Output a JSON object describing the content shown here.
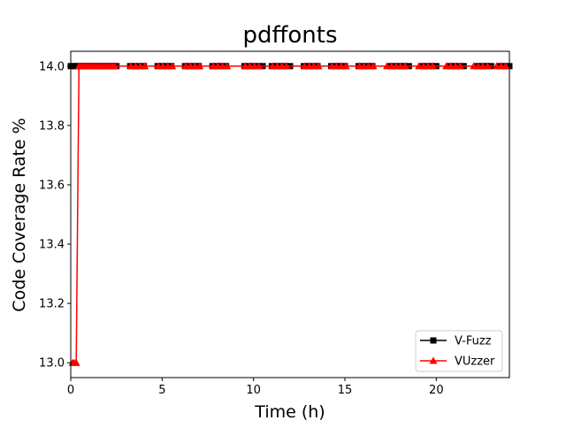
{
  "chart_data": {
    "type": "line",
    "title": "pdffonts",
    "xlabel": "Time (h)",
    "ylabel": "Code Coverage Rate %",
    "xlim": [
      0,
      24
    ],
    "ylim": [
      12.95,
      14.05
    ],
    "xticks": [
      0,
      5,
      10,
      15,
      20
    ],
    "yticks": [
      13.0,
      13.2,
      13.4,
      13.6,
      13.8,
      14.0
    ],
    "ytick_labels": [
      "13.0",
      "13.2",
      "13.4",
      "13.6",
      "13.8",
      "14.0"
    ],
    "grid": false,
    "legend_position": "lower-right",
    "series": [
      {
        "name": "V-Fuzz",
        "color": "#000000",
        "marker": "square",
        "x": [
          0.0,
          0.17,
          0.33,
          0.5,
          0.67,
          0.83,
          1.0,
          1.17,
          1.33,
          1.5,
          1.67,
          1.83,
          2.0,
          2.17,
          2.33,
          2.5,
          3.25,
          3.5,
          3.75,
          4.0,
          4.75,
          5.0,
          5.25,
          5.5,
          6.25,
          6.5,
          6.75,
          7.0,
          7.75,
          8.0,
          8.25,
          8.5,
          9.5,
          9.75,
          10.0,
          10.25,
          10.5,
          11.0,
          11.25,
          11.5,
          11.75,
          12.0,
          12.75,
          13.0,
          13.25,
          13.5,
          14.25,
          14.5,
          14.75,
          15.0,
          15.75,
          16.0,
          16.25,
          16.5,
          17.5,
          17.75,
          18.0,
          18.25,
          18.5,
          19.25,
          19.5,
          19.75,
          20.0,
          20.75,
          21.0,
          21.25,
          21.5,
          22.25,
          22.5,
          22.75,
          23.0,
          23.5,
          23.75,
          24.0
        ],
        "y": [
          14.0,
          14.0,
          14.0,
          14.0,
          14.0,
          14.0,
          14.0,
          14.0,
          14.0,
          14.0,
          14.0,
          14.0,
          14.0,
          14.0,
          14.0,
          14.0,
          14.0,
          14.0,
          14.0,
          14.0,
          14.0,
          14.0,
          14.0,
          14.0,
          14.0,
          14.0,
          14.0,
          14.0,
          14.0,
          14.0,
          14.0,
          14.0,
          14.0,
          14.0,
          14.0,
          14.0,
          14.0,
          14.0,
          14.0,
          14.0,
          14.0,
          14.0,
          14.0,
          14.0,
          14.0,
          14.0,
          14.0,
          14.0,
          14.0,
          14.0,
          14.0,
          14.0,
          14.0,
          14.0,
          14.0,
          14.0,
          14.0,
          14.0,
          14.0,
          14.0,
          14.0,
          14.0,
          14.0,
          14.0,
          14.0,
          14.0,
          14.0,
          14.0,
          14.0,
          14.0,
          14.0,
          14.0,
          14.0,
          14.0
        ]
      },
      {
        "name": "VUzzer",
        "color": "#ff0000",
        "marker": "triangle",
        "x": [
          0.1,
          0.2,
          0.3,
          0.45,
          0.6,
          0.75,
          0.9,
          1.05,
          1.2,
          1.35,
          1.5,
          1.65,
          1.8,
          1.95,
          2.1,
          2.25,
          2.4,
          3.3,
          3.55,
          3.8,
          4.05,
          4.8,
          5.05,
          5.3,
          5.55,
          6.3,
          6.55,
          6.8,
          7.05,
          7.8,
          8.05,
          8.3,
          8.55,
          9.55,
          9.8,
          10.05,
          10.3,
          11.05,
          11.3,
          11.55,
          11.8,
          12.8,
          13.05,
          13.3,
          13.55,
          14.3,
          14.55,
          14.8,
          15.05,
          15.8,
          16.05,
          16.3,
          16.55,
          17.3,
          17.55,
          17.8,
          18.05,
          18.3,
          19.05,
          19.3,
          19.55,
          19.8,
          20.55,
          20.8,
          21.05,
          21.3,
          22.05,
          22.3,
          22.55,
          22.8,
          23.3,
          23.55,
          23.8
        ],
        "y": [
          13.0,
          13.0,
          13.0,
          14.0,
          14.0,
          14.0,
          14.0,
          14.0,
          14.0,
          14.0,
          14.0,
          14.0,
          14.0,
          14.0,
          14.0,
          14.0,
          14.0,
          14.0,
          14.0,
          14.0,
          14.0,
          14.0,
          14.0,
          14.0,
          14.0,
          14.0,
          14.0,
          14.0,
          14.0,
          14.0,
          14.0,
          14.0,
          14.0,
          14.0,
          14.0,
          14.0,
          14.0,
          14.0,
          14.0,
          14.0,
          14.0,
          14.0,
          14.0,
          14.0,
          14.0,
          14.0,
          14.0,
          14.0,
          14.0,
          14.0,
          14.0,
          14.0,
          14.0,
          14.0,
          14.0,
          14.0,
          14.0,
          14.0,
          14.0,
          14.0,
          14.0,
          14.0,
          14.0,
          14.0,
          14.0,
          14.0,
          14.0,
          14.0,
          14.0,
          14.0,
          14.0,
          14.0,
          14.0
        ]
      }
    ]
  }
}
